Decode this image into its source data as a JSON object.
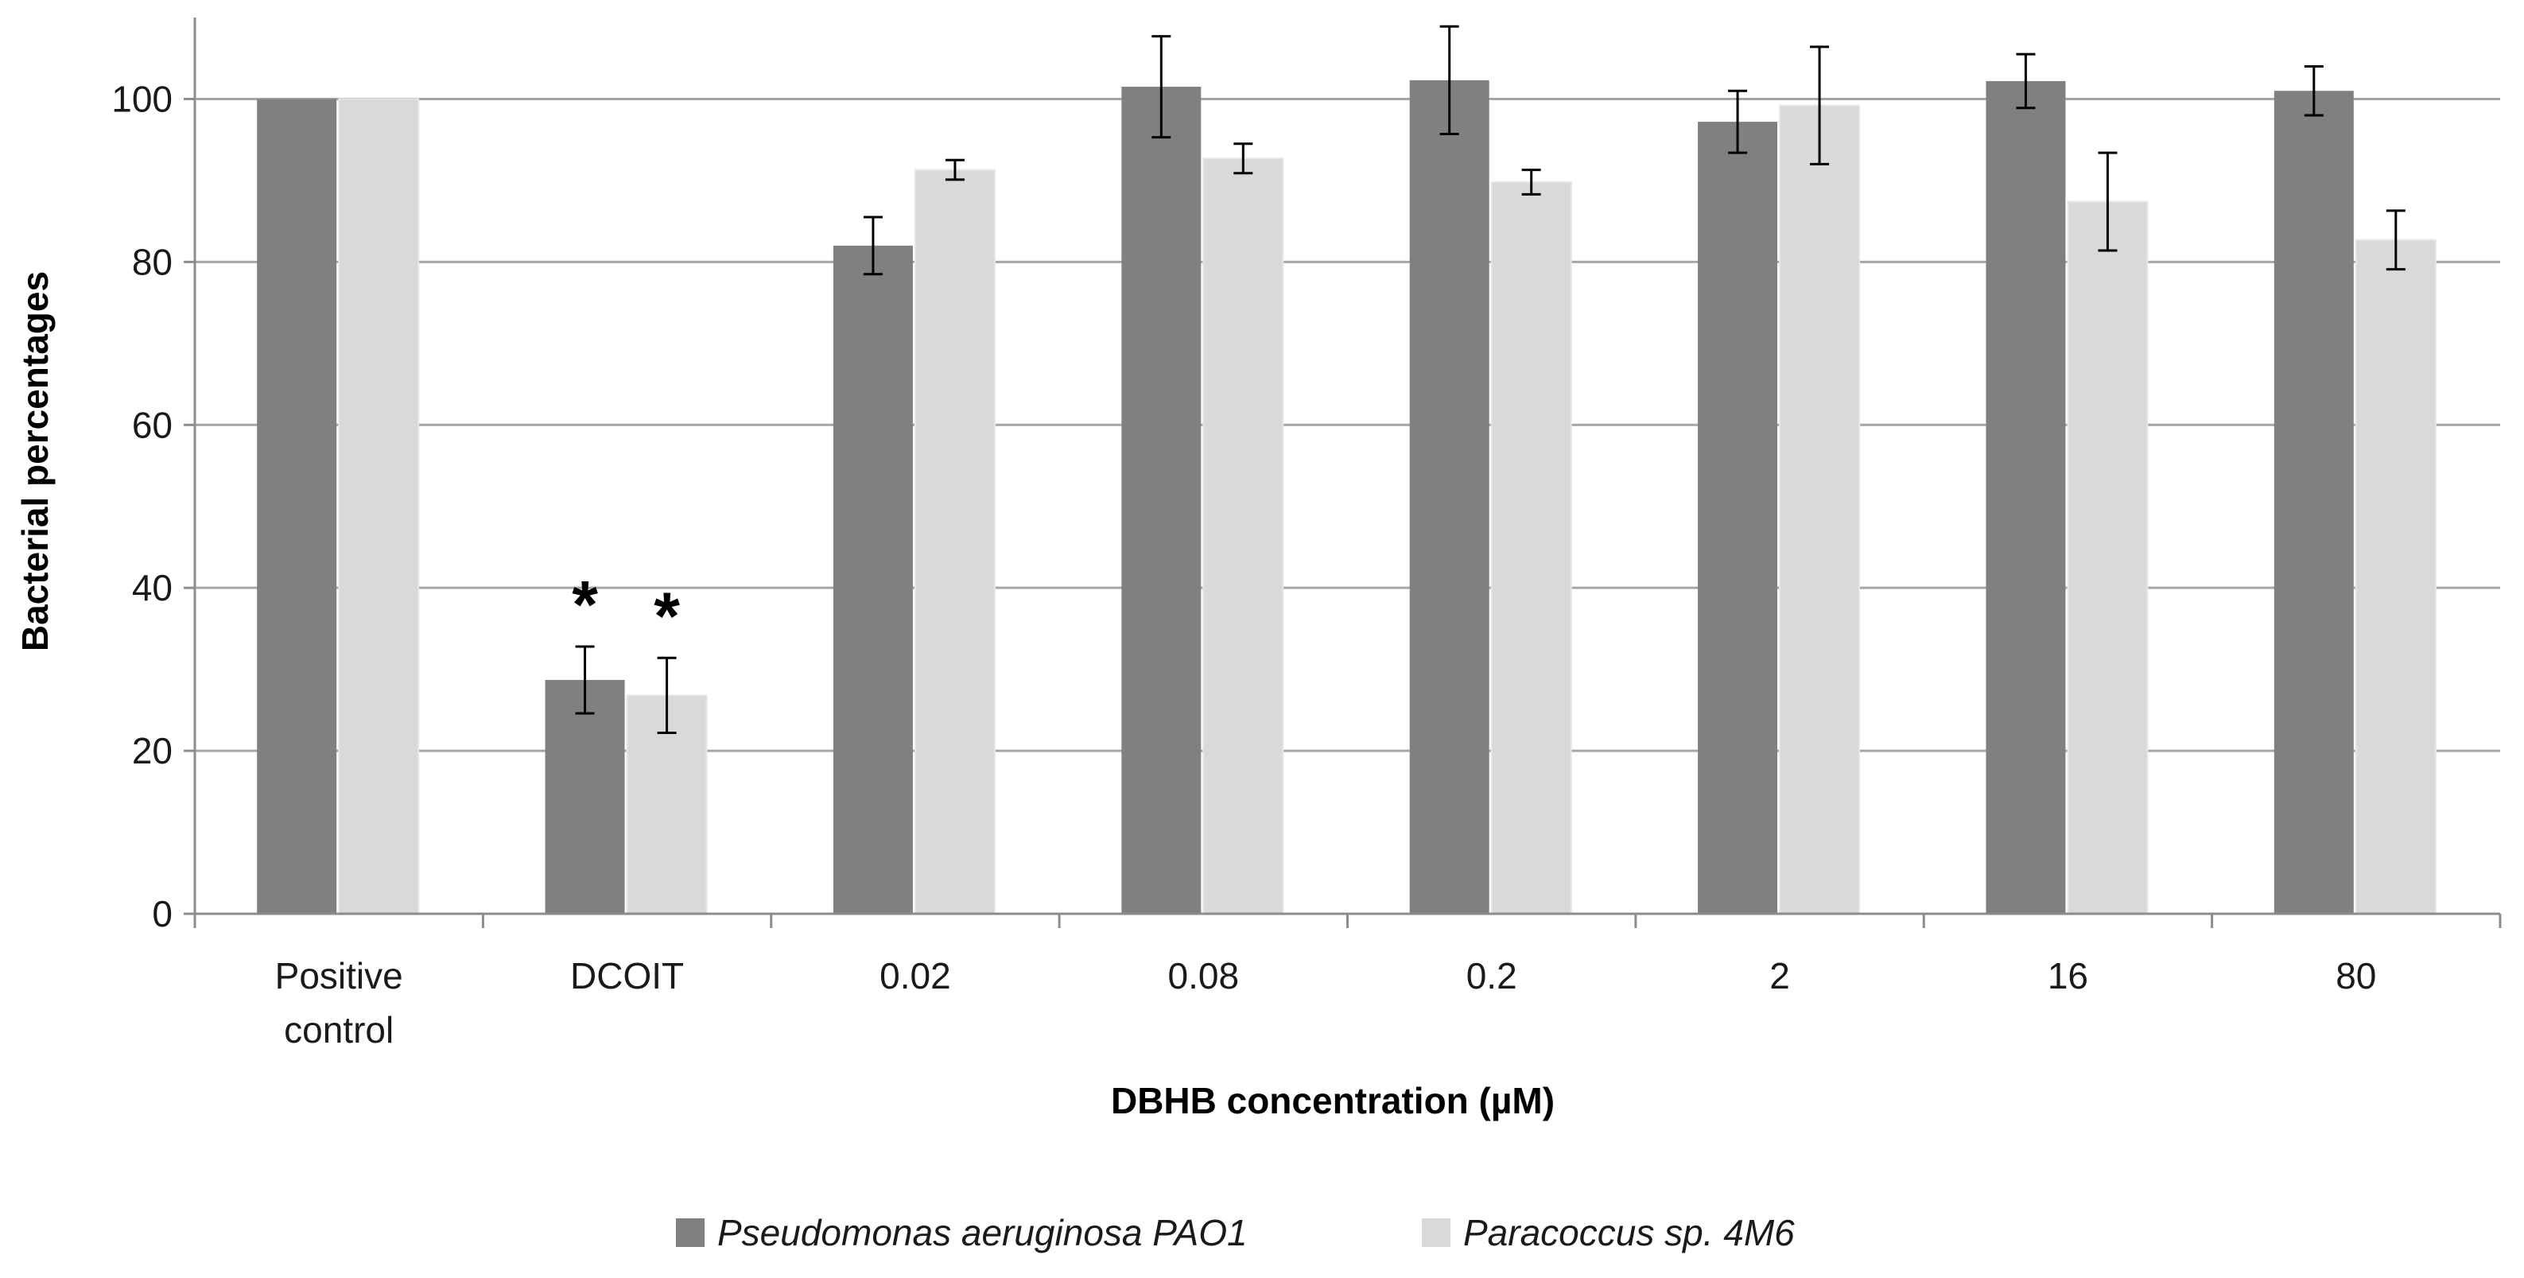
{
  "chart_data": {
    "type": "bar",
    "title": "",
    "xlabel": "DBHB concentration (µM)",
    "ylabel": "Bacterial percentages",
    "ylim": [
      0,
      110
    ],
    "yticks": [
      0,
      20,
      40,
      60,
      80,
      100
    ],
    "grid": true,
    "legend_position": "bottom",
    "categories": [
      [
        "Positive",
        "control"
      ],
      [
        "DCOIT"
      ],
      [
        "0.02"
      ],
      [
        "0.08"
      ],
      [
        "0.2"
      ],
      [
        "2"
      ],
      [
        "16"
      ],
      [
        "80"
      ]
    ],
    "series": [
      {
        "name": "Pseudomonas aeruginosa PAO1",
        "color": "#808080",
        "values": [
          100,
          28.7,
          82,
          101.5,
          102.3,
          97.2,
          102.2,
          101
        ],
        "errors": [
          0,
          4.1,
          3.5,
          6.2,
          6.6,
          3.8,
          3.3,
          3
        ],
        "annotations": [
          "",
          "*",
          "",
          "",
          "",
          "",
          "",
          ""
        ]
      },
      {
        "name": "Paracoccus sp. 4M6",
        "color": "#d9d9d9",
        "values": [
          100,
          26.8,
          91.3,
          92.7,
          89.8,
          99.2,
          87.4,
          82.7
        ],
        "errors": [
          0,
          4.6,
          1.2,
          1.8,
          1.5,
          7.2,
          6,
          3.6
        ],
        "annotations": [
          "",
          "*",
          "",
          "",
          "",
          "",
          "",
          ""
        ]
      }
    ]
  }
}
